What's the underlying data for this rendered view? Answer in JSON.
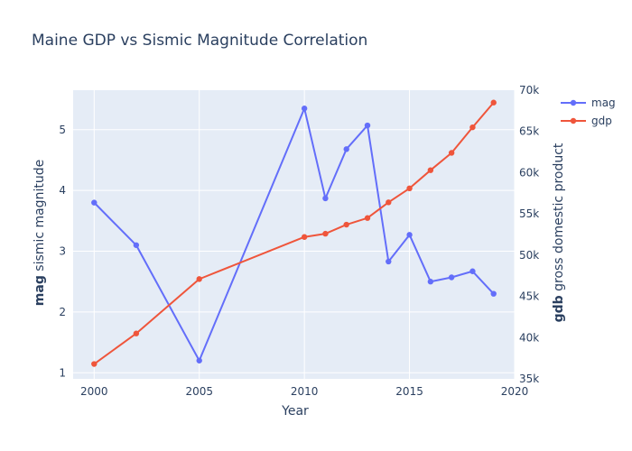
{
  "chart_data": {
    "type": "line",
    "title": "Maine GDP vs Sismic Magnitude Correlation",
    "xlabel": "Year",
    "y_left_label_bold": "mag",
    "y_left_label_rest": " sismic magnitude",
    "y_right_label_bold": "gdb",
    "y_right_label_rest": " gross domestic product",
    "xlim": [
      1999,
      2020
    ],
    "x_ticks": [
      2000,
      2005,
      2010,
      2015,
      2020
    ],
    "x_tick_labels": [
      "2000",
      "2005",
      "2010",
      "2015",
      "2020"
    ],
    "y_left_lim": [
      0.9,
      5.65
    ],
    "y_left_ticks": [
      1,
      2,
      3,
      4,
      5
    ],
    "y_left_tick_labels": [
      "1",
      "2",
      "3",
      "4",
      "5"
    ],
    "y_right_lim": [
      35000,
      70000
    ],
    "y_right_ticks": [
      35000,
      40000,
      45000,
      50000,
      55000,
      60000,
      65000,
      70000
    ],
    "y_right_tick_labels": [
      "35k",
      "40k",
      "45k",
      "50k",
      "55k",
      "60k",
      "65k",
      "70k"
    ],
    "grid": true,
    "legend_position": "top-right",
    "series": [
      {
        "name": "mag",
        "axis": "left",
        "color": "#636efa",
        "x": [
          2000,
          2002,
          2005,
          2010,
          2011,
          2012,
          2013,
          2014,
          2015,
          2016,
          2017,
          2018,
          2019
        ],
        "y": [
          3.8,
          3.1,
          1.2,
          5.35,
          3.87,
          4.68,
          5.07,
          2.83,
          3.27,
          2.5,
          2.57,
          2.67,
          2.3
        ]
      },
      {
        "name": "gdp",
        "axis": "right",
        "color": "#ef553b",
        "x": [
          2000,
          2002,
          2005,
          2010,
          2011,
          2012,
          2013,
          2014,
          2015,
          2016,
          2017,
          2018,
          2019
        ],
        "y": [
          36800,
          40500,
          47100,
          52200,
          52600,
          53700,
          54500,
          56400,
          58100,
          60300,
          62400,
          65500,
          68500
        ]
      }
    ]
  }
}
